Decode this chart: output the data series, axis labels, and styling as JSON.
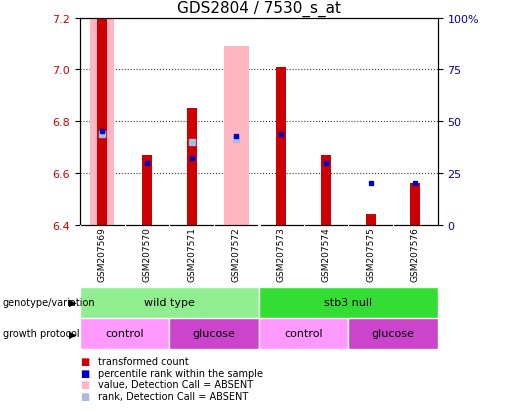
{
  "title": "GDS2804 / 7530_s_at",
  "samples": [
    "GSM207569",
    "GSM207570",
    "GSM207571",
    "GSM207572",
    "GSM207573",
    "GSM207574",
    "GSM207575",
    "GSM207576"
  ],
  "ylim_left": [
    6.4,
    7.2
  ],
  "ylim_right": [
    0,
    100
  ],
  "yticks_left": [
    6.4,
    6.6,
    6.8,
    7.0,
    7.2
  ],
  "yticks_right": [
    0,
    25,
    50,
    75,
    100
  ],
  "red_bar_values": [
    7.2,
    6.67,
    6.85,
    6.4,
    7.01,
    6.67,
    6.44,
    6.56
  ],
  "blue_dot_values": [
    45,
    30,
    32,
    43,
    44,
    30,
    20,
    20
  ],
  "absent_pink_bar": [
    true,
    false,
    false,
    true,
    false,
    false,
    false,
    false
  ],
  "absent_pink_top": [
    7.2,
    null,
    null,
    7.09,
    null,
    null,
    null,
    null
  ],
  "absent_lightblue_dot": [
    true,
    false,
    true,
    true,
    false,
    false,
    false,
    false
  ],
  "absent_lightblue_y_left": [
    6.75,
    null,
    6.72,
    6.73,
    null,
    null,
    null,
    null
  ],
  "bar_bottom": 6.4,
  "genotype_groups": [
    {
      "label": "wild type",
      "start": 0,
      "end": 4,
      "color": "#90EE90"
    },
    {
      "label": "stb3 null",
      "start": 4,
      "end": 8,
      "color": "#33DD33"
    }
  ],
  "protocol_groups": [
    {
      "label": "control",
      "start": 0,
      "end": 2,
      "color": "#FF99FF"
    },
    {
      "label": "glucose",
      "start": 2,
      "end": 4,
      "color": "#CC44CC"
    },
    {
      "label": "control",
      "start": 4,
      "end": 6,
      "color": "#FF99FF"
    },
    {
      "label": "glucose",
      "start": 6,
      "end": 8,
      "color": "#CC44CC"
    }
  ],
  "legend_items": [
    {
      "label": "transformed count",
      "color": "#CC0000"
    },
    {
      "label": "percentile rank within the sample",
      "color": "#0000CC"
    },
    {
      "label": "value, Detection Call = ABSENT",
      "color": "#FFB6C1"
    },
    {
      "label": "rank, Detection Call = ABSENT",
      "color": "#AABBDD"
    }
  ],
  "ylabel_left_color": "#CC0000",
  "ylabel_right_color": "#0000AA",
  "title_fontsize": 11,
  "tick_fontsize": 8
}
